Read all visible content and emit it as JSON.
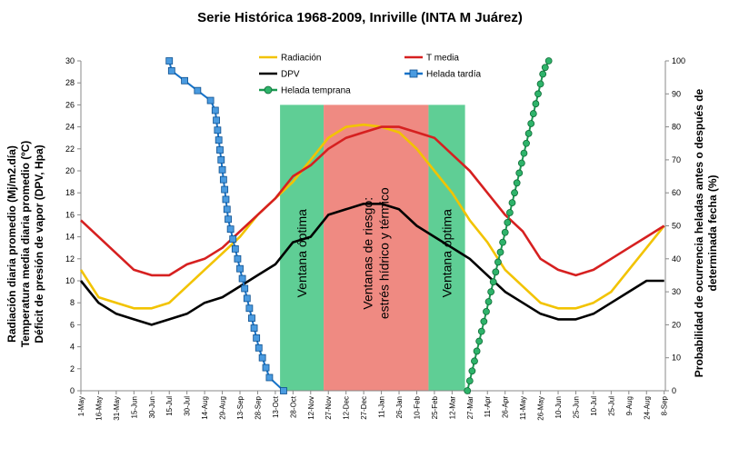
{
  "chart_data": {
    "type": "line",
    "title": "Serie Histórica 1968-2009, Inriville (INTA M Juárez)",
    "ylabel_left": [
      "Radiación diaria promedio (Mj/m2.día)",
      "Temperatura media diaria promedio (ºC)",
      "Déficit de presión de vapor (DPV, Hpa)"
    ],
    "ylabel_right": [
      "Probabilidad de ocurrencia heladas antes o después de",
      "determinada fecha (%)"
    ],
    "ylim_left": [
      0,
      30
    ],
    "ylim_right": [
      0,
      100
    ],
    "yticks_left": [
      "0",
      "2",
      "4",
      "6",
      "8",
      "10",
      "12",
      "14",
      "16",
      "18",
      "20",
      "22",
      "24",
      "26",
      "28",
      "30"
    ],
    "yticks_right": [
      "0",
      "10",
      "20",
      "30",
      "40",
      "50",
      "60",
      "70",
      "80",
      "90",
      "100"
    ],
    "x_range_days": [
      0,
      496
    ],
    "x_ticks": [
      {
        "day": 0,
        "label": "1-May"
      },
      {
        "day": 15,
        "label": "16-May"
      },
      {
        "day": 30,
        "label": "31-May"
      },
      {
        "day": 45,
        "label": "15-Jun"
      },
      {
        "day": 60,
        "label": "30-Jun"
      },
      {
        "day": 75,
        "label": "15-Jul"
      },
      {
        "day": 90,
        "label": "30-Jul"
      },
      {
        "day": 105,
        "label": "14-Aug"
      },
      {
        "day": 120,
        "label": "29-Aug"
      },
      {
        "day": 135,
        "label": "13-Sep"
      },
      {
        "day": 150,
        "label": "28-Sep"
      },
      {
        "day": 165,
        "label": "13-Oct"
      },
      {
        "day": 180,
        "label": "28-Oct"
      },
      {
        "day": 195,
        "label": "12-Nov"
      },
      {
        "day": 210,
        "label": "27-Nov"
      },
      {
        "day": 225,
        "label": "12-Dec"
      },
      {
        "day": 240,
        "label": "27-Dec"
      },
      {
        "day": 255,
        "label": "11-Jan"
      },
      {
        "day": 270,
        "label": "26-Jan"
      },
      {
        "day": 285,
        "label": "10-Feb"
      },
      {
        "day": 300,
        "label": "25-Feb"
      },
      {
        "day": 315,
        "label": "12-Mar"
      },
      {
        "day": 330,
        "label": "27-Mar"
      },
      {
        "day": 345,
        "label": "11-Apr"
      },
      {
        "day": 360,
        "label": "26-Apr"
      },
      {
        "day": 375,
        "label": "11-May"
      },
      {
        "day": 390,
        "label": "26-May"
      },
      {
        "day": 405,
        "label": "10-Jun"
      },
      {
        "day": 420,
        "label": "25-Jun"
      },
      {
        "day": 435,
        "label": "10-Jul"
      },
      {
        "day": 450,
        "label": "25-Jul"
      },
      {
        "day": 465,
        "label": "9-Aug"
      },
      {
        "day": 480,
        "label": "24-Aug"
      },
      {
        "day": 495,
        "label": "8-Sep"
      }
    ],
    "regions": [
      {
        "label": "Ventana óptima",
        "lines": [
          "Ventana óptima"
        ],
        "start_day": 169,
        "end_day": 206,
        "color": "#5fce95"
      },
      {
        "label": "Ventanas de riesgo: estrés hídrico y térmico",
        "lines": [
          "Ventanas de riesgo:",
          "estrés hídrico y térmico"
        ],
        "start_day": 206,
        "end_day": 295,
        "color": "#ef8a82"
      },
      {
        "label": "Ventana óptima",
        "lines": [
          "Ventana óptima"
        ],
        "start_day": 295,
        "end_day": 326,
        "color": "#5fce95"
      }
    ],
    "series": [
      {
        "name": "Radiación",
        "axis": "left",
        "color": "#f2c300",
        "x": [
          0,
          15,
          30,
          45,
          60,
          75,
          90,
          105,
          120,
          135,
          150,
          165,
          180,
          195,
          210,
          225,
          240,
          255,
          270,
          285,
          300,
          315,
          330,
          345,
          360,
          375,
          390,
          405,
          420,
          435,
          450,
          465,
          480,
          495
        ],
        "y": [
          11,
          8.5,
          8,
          7.5,
          7.5,
          8,
          9.5,
          11,
          12.5,
          14,
          16,
          17.5,
          19,
          21,
          23,
          24,
          24.2,
          24,
          23.5,
          22,
          20,
          18,
          15.5,
          13.5,
          11,
          9.5,
          8,
          7.5,
          7.5,
          8,
          9,
          11,
          13,
          15
        ]
      },
      {
        "name": "T media",
        "axis": "left",
        "color": "#d62020",
        "x": [
          0,
          15,
          30,
          45,
          60,
          75,
          90,
          105,
          120,
          135,
          150,
          165,
          180,
          195,
          210,
          225,
          240,
          255,
          270,
          285,
          300,
          315,
          330,
          345,
          360,
          375,
          390,
          405,
          420,
          435,
          450,
          465,
          480,
          495
        ],
        "y": [
          15.5,
          14,
          12.5,
          11,
          10.5,
          10.5,
          11.5,
          12,
          13,
          14.5,
          16,
          17.5,
          19.5,
          20.5,
          22,
          23,
          23.5,
          24,
          24,
          23.5,
          23,
          21.5,
          20,
          18,
          16,
          14.5,
          12,
          11,
          10.5,
          11,
          12,
          13,
          14,
          15
        ]
      },
      {
        "name": "DPV",
        "axis": "left",
        "color": "#000000",
        "x": [
          0,
          15,
          30,
          45,
          60,
          75,
          90,
          105,
          120,
          135,
          150,
          165,
          180,
          195,
          210,
          225,
          240,
          255,
          270,
          285,
          300,
          315,
          330,
          345,
          360,
          375,
          390,
          405,
          420,
          435,
          450,
          465,
          480,
          495
        ],
        "y": [
          10,
          8,
          7,
          6.5,
          6,
          6.5,
          7,
          8,
          8.5,
          9.5,
          10.5,
          11.5,
          13.5,
          14,
          16,
          16.5,
          17,
          17,
          16.5,
          15,
          14,
          13,
          12,
          10.5,
          9,
          8,
          7,
          6.5,
          6.5,
          7,
          8,
          9,
          10,
          10
        ]
      },
      {
        "name": "Helada tardía",
        "axis": "right",
        "color": "#1673c9",
        "marker": "square",
        "x": [
          75,
          77,
          88,
          99,
          110,
          114,
          115,
          116,
          117,
          118,
          119,
          120,
          121,
          122,
          123,
          124,
          125,
          127,
          129,
          131,
          133,
          135,
          137,
          139,
          141,
          143,
          145,
          147,
          149,
          151,
          154,
          157,
          160,
          172
        ],
        "y": [
          100,
          97,
          94,
          91,
          88,
          85,
          82,
          79,
          76,
          73,
          70,
          67,
          64,
          61,
          58,
          55,
          52,
          49,
          46,
          43,
          40,
          37,
          34,
          31,
          28,
          25,
          22,
          19,
          16,
          13,
          10,
          7,
          4,
          0
        ]
      },
      {
        "name": "Helada temprana",
        "axis": "right",
        "color": "#1a9a52",
        "marker": "circle",
        "x": [
          328,
          330,
          332,
          334,
          336,
          338,
          340,
          342,
          344,
          346,
          348,
          350,
          352,
          354,
          356,
          358,
          360,
          362,
          364,
          366,
          368,
          370,
          372,
          374,
          376,
          378,
          380,
          382,
          384,
          386,
          388,
          390,
          392,
          394,
          397
        ],
        "y": [
          0,
          3,
          6,
          9,
          12,
          15,
          18,
          21,
          24,
          27,
          30,
          33,
          36,
          39,
          42,
          45,
          48,
          51,
          54,
          57,
          60,
          63,
          66,
          69,
          72,
          75,
          78,
          81,
          84,
          87,
          90,
          93,
          96,
          98,
          100
        ]
      }
    ],
    "legend": {
      "placement": "top-center",
      "entries": [
        {
          "label": "Radiación",
          "color": "#f2c300",
          "marker": "none"
        },
        {
          "label": "T media",
          "color": "#d62020",
          "marker": "none"
        },
        {
          "label": "DPV",
          "color": "#000000",
          "marker": "none"
        },
        {
          "label": "Helada tardía",
          "color": "#1673c9",
          "marker": "square"
        },
        {
          "label": "Helada temprana",
          "color": "#1a9a52",
          "marker": "circle"
        }
      ]
    }
  }
}
